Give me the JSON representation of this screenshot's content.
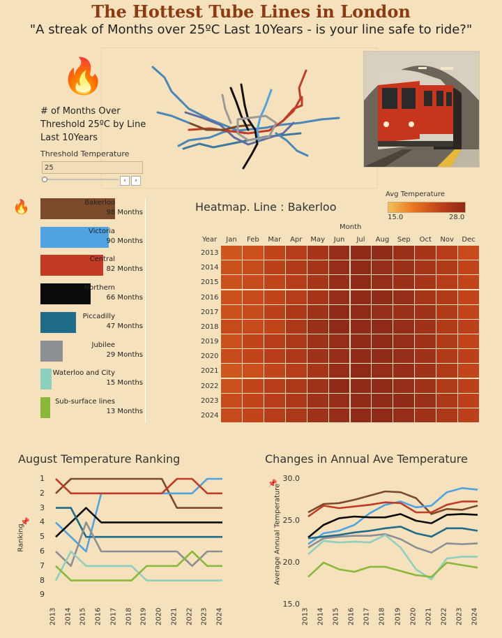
{
  "header": {
    "title": "The Hottest Tube Lines in London",
    "subtitle": "\"A streak of Months over 25ºC Last 10Years  -  is your line safe to ride?\""
  },
  "filter": {
    "description_line1": "# of Months Over",
    "description_line2": "Threshold 25ºC by Line",
    "description_line3": "Last 10Years",
    "threshold_label": "Threshold Temperature",
    "threshold_value": "25",
    "prev_button": "‹",
    "next_button": "›"
  },
  "icons": {
    "flame": "🔥",
    "pin": "📌"
  },
  "bars": [
    {
      "name": "Bakerloo",
      "months": 98,
      "label": "98 Months",
      "color": "#7b4a2a"
    },
    {
      "name": "Victoria",
      "months": 90,
      "label": "90 Months",
      "color": "#4ea3e2"
    },
    {
      "name": "Central",
      "months": 82,
      "label": "82 Months",
      "color": "#c23b27"
    },
    {
      "name": "Northern",
      "months": 66,
      "label": "66 Months",
      "color": "#0b0b0b"
    },
    {
      "name": "Piccadilly",
      "months": 47,
      "label": "47 Months",
      "color": "#1f6b8a"
    },
    {
      "name": "Jubilee",
      "months": 29,
      "label": "29 Months",
      "color": "#8c8f93"
    },
    {
      "name": "Waterloo and City",
      "months": 15,
      "label": "15 Months",
      "color": "#8fcfc0"
    },
    {
      "name": "Sub-surface lines",
      "months": 13,
      "label": "13 Months",
      "color": "#8ab83a"
    }
  ],
  "heatmap": {
    "title": "Heatmap.   Line : Bakerloo",
    "legend_title": "Avg Temperature",
    "legend_min": "15.0",
    "legend_max": "28.0",
    "month_axis_title": "Month",
    "year_axis_title": "Year"
  },
  "rank_chart": {
    "title": "August Temperature Ranking",
    "ylabel": "Ranking"
  },
  "temp_chart": {
    "title": "Changes in Annual Ave Temperature",
    "ylabel": "Average Annual Temperature"
  },
  "chart_data": [
    {
      "type": "bar",
      "categories": [
        "Bakerloo",
        "Victoria",
        "Central",
        "Northern",
        "Piccadilly",
        "Jubilee",
        "Waterloo and City",
        "Sub-surface lines"
      ],
      "values": [
        98,
        90,
        82,
        66,
        47,
        29,
        15,
        13
      ]
    },
    {
      "type": "heatmap",
      "title": "Heatmap.   Line : Bakerloo",
      "x": [
        "Jan",
        "Feb",
        "Mar",
        "Apr",
        "May",
        "Jun",
        "Jul",
        "Aug",
        "Sep",
        "Oct",
        "Nov",
        "Dec"
      ],
      "y": [
        "2013",
        "2014",
        "2015",
        "2016",
        "2017",
        "2018",
        "2019",
        "2020",
        "2021",
        "2022",
        "2023",
        "2024"
      ],
      "colorbar": [
        15.0,
        28.0
      ],
      "values": [
        [
          22.0,
          22.5,
          23.5,
          24.5,
          26.0,
          27.5,
          28.0,
          28.0,
          27.0,
          26.0,
          24.5,
          23.0
        ],
        [
          22.5,
          23.0,
          24.0,
          25.0,
          26.0,
          27.5,
          28.0,
          27.5,
          27.0,
          26.0,
          25.0,
          23.5
        ],
        [
          22.5,
          23.0,
          23.5,
          24.5,
          26.0,
          27.5,
          28.0,
          27.5,
          27.0,
          26.0,
          24.5,
          23.5
        ],
        [
          22.5,
          23.0,
          23.5,
          24.5,
          26.0,
          27.5,
          28.0,
          28.0,
          27.5,
          26.0,
          25.0,
          23.5
        ],
        [
          22.5,
          23.0,
          24.0,
          25.5,
          26.5,
          28.0,
          28.0,
          27.5,
          27.0,
          26.5,
          25.0,
          23.5
        ],
        [
          23.0,
          23.0,
          23.5,
          25.5,
          27.0,
          28.0,
          28.0,
          28.0,
          27.5,
          26.5,
          25.0,
          24.0
        ],
        [
          22.5,
          23.5,
          24.5,
          25.5,
          26.5,
          27.5,
          28.0,
          28.0,
          27.5,
          26.5,
          25.0,
          23.5
        ],
        [
          23.0,
          23.5,
          24.5,
          25.5,
          26.5,
          27.5,
          28.0,
          28.0,
          27.5,
          26.5,
          25.0,
          24.0
        ],
        [
          22.0,
          22.5,
          23.5,
          24.5,
          26.0,
          27.5,
          28.0,
          27.5,
          27.5,
          26.5,
          25.0,
          23.5
        ],
        [
          22.5,
          23.5,
          24.5,
          25.5,
          26.5,
          28.0,
          28.0,
          28.0,
          27.5,
          26.5,
          25.0,
          24.0
        ],
        [
          23.0,
          23.5,
          24.5,
          25.5,
          26.5,
          27.5,
          28.0,
          28.0,
          28.0,
          27.0,
          25.5,
          24.0
        ],
        [
          23.0,
          23.5,
          24.5,
          25.5,
          26.5,
          27.5,
          28.0,
          28.0,
          27.5,
          26.5,
          25.5,
          24.0
        ]
      ]
    },
    {
      "type": "line",
      "title": "August Temperature Ranking",
      "ylabel": "Ranking",
      "x": [
        "2013",
        "2014",
        "2015",
        "2016",
        "2017",
        "2018",
        "2019",
        "2020",
        "2021",
        "2022",
        "2023",
        "2024"
      ],
      "ylim": [
        1,
        9
      ],
      "y_inverted": true,
      "series": [
        {
          "values": [
            2,
            1,
            1,
            1,
            1,
            1,
            1,
            1,
            3,
            3,
            3,
            3
          ],
          "color": "#7b4a2a"
        },
        {
          "values": [
            4,
            5,
            6,
            2,
            2,
            2,
            2,
            2,
            2,
            2,
            1,
            1
          ],
          "color": "#4ea3e2"
        },
        {
          "values": [
            1,
            2,
            2,
            2,
            2,
            2,
            2,
            2,
            1,
            1,
            2,
            2
          ],
          "color": "#c23b27"
        },
        {
          "values": [
            5,
            4,
            3,
            4,
            4,
            4,
            4,
            4,
            4,
            4,
            4,
            4
          ],
          "color": "#0b0b0b"
        },
        {
          "values": [
            3,
            3,
            5,
            5,
            5,
            5,
            5,
            5,
            5,
            5,
            5,
            5
          ],
          "color": "#1f6b8a"
        },
        {
          "values": [
            6,
            7,
            4,
            6,
            6,
            6,
            6,
            6,
            6,
            7,
            6,
            6
          ],
          "color": "#8c8f93"
        },
        {
          "values": [
            8,
            6,
            7,
            7,
            7,
            7,
            8,
            8,
            8,
            8,
            8,
            8
          ],
          "color": "#8fcfc0"
        },
        {
          "values": [
            7,
            8,
            8,
            8,
            8,
            8,
            7,
            7,
            7,
            6,
            7,
            7
          ],
          "color": "#8ab83a"
        }
      ]
    },
    {
      "type": "line",
      "title": "Changes in Annual Ave Temperature",
      "ylabel": "Average Annual Temperature",
      "x": [
        "2013",
        "2014",
        "2015",
        "2016",
        "2017",
        "2018",
        "2019",
        "2020",
        "2021",
        "2022",
        "2023",
        "2024"
      ],
      "ylim": [
        15.0,
        30.0
      ],
      "yticks": [
        15.0,
        20.0,
        25.0,
        30.0
      ],
      "series": [
        {
          "values": [
            26.0,
            27.0,
            27.1,
            27.5,
            28.0,
            28.5,
            28.4,
            27.7,
            25.8,
            26.4,
            26.3,
            26.8
          ],
          "color": "#7b4a2a"
        },
        {
          "values": [
            22.2,
            23.5,
            23.8,
            24.5,
            25.9,
            26.9,
            27.3,
            26.6,
            26.8,
            28.4,
            28.9,
            28.7
          ],
          "color": "#4ea3e2"
        },
        {
          "values": [
            25.5,
            26.8,
            26.5,
            26.7,
            26.9,
            27.2,
            27.1,
            26.0,
            26.0,
            26.9,
            27.3,
            27.3
          ],
          "color": "#c23b27"
        },
        {
          "values": [
            23.0,
            24.5,
            25.3,
            25.5,
            25.4,
            25.4,
            25.8,
            25.0,
            24.7,
            25.7,
            25.8,
            25.7
          ],
          "color": "#0b0b0b"
        },
        {
          "values": [
            22.9,
            23.1,
            23.3,
            23.6,
            23.8,
            24.1,
            24.3,
            23.5,
            23.1,
            24.1,
            24.1,
            23.8
          ],
          "color": "#1f6b8a"
        },
        {
          "values": [
            21.8,
            22.9,
            23.1,
            23.2,
            23.2,
            23.4,
            22.8,
            21.8,
            21.2,
            22.3,
            22.2,
            22.3
          ],
          "color": "#8c8f93"
        },
        {
          "values": [
            21.0,
            22.6,
            22.4,
            22.5,
            22.4,
            23.3,
            21.8,
            19.2,
            18.0,
            20.5,
            20.7,
            20.7
          ],
          "color": "#8fcfc0"
        },
        {
          "values": [
            18.3,
            20.0,
            19.2,
            18.9,
            19.5,
            19.5,
            19.0,
            18.5,
            18.3,
            20.0,
            19.7,
            19.4
          ],
          "color": "#8ab83a"
        }
      ]
    }
  ]
}
